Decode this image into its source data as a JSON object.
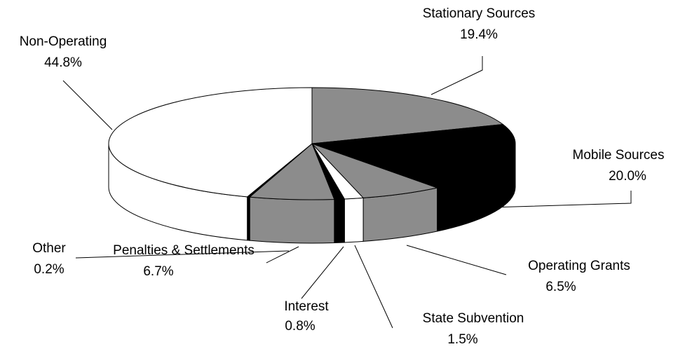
{
  "chart_data": {
    "type": "pie",
    "categories": [
      "Stationary Sources",
      "Mobile Sources",
      "Operating Grants",
      "State Subvention",
      "Interest",
      "Penalties & Settlements",
      "Other",
      "Non-Operating"
    ],
    "values": [
      19.4,
      20.0,
      6.5,
      1.5,
      0.8,
      6.7,
      0.2,
      44.8
    ],
    "value_labels": [
      "19.4%",
      "20.0%",
      "6.5%",
      "1.5%",
      "0.8%",
      "6.7%",
      "0.2%",
      "44.8%"
    ],
    "colors": [
      "#8c8c8c",
      "#000000",
      "#8c8c8c",
      "#ffffff",
      "#000000",
      "#8c8c8c",
      "#000000",
      "#ffffff"
    ]
  }
}
